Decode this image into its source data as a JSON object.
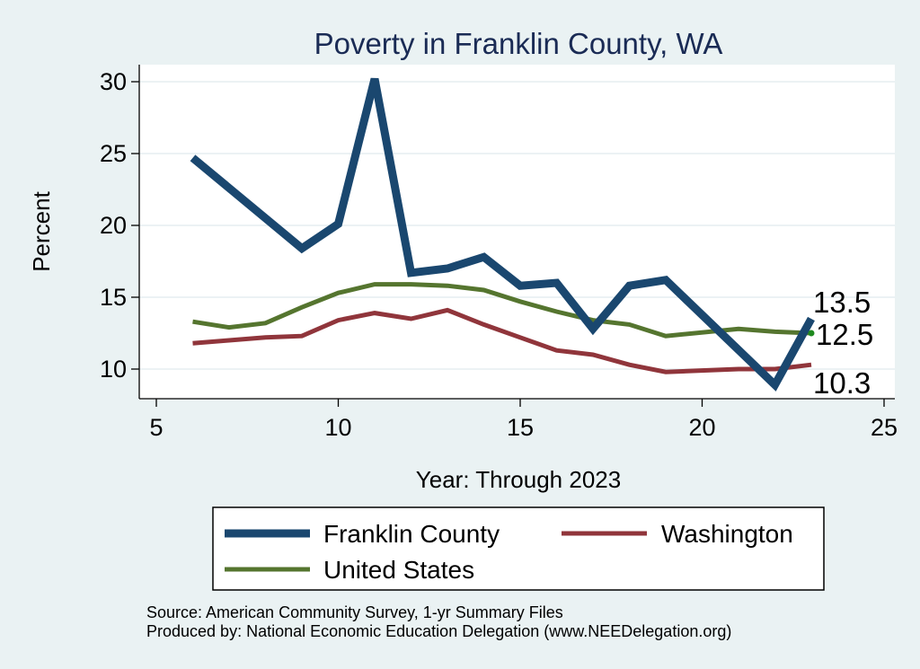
{
  "chart_data": {
    "type": "line",
    "title": "Poverty in Franklin County, WA",
    "xlabel": "Year: Through 2023",
    "ylabel": "Percent",
    "xlim": [
      5,
      25
    ],
    "ylim": [
      8,
      31
    ],
    "xticks": [
      5,
      10,
      15,
      20,
      25
    ],
    "yticks": [
      10,
      15,
      20,
      25,
      30
    ],
    "grid": "horizontal",
    "legend_position": "bottom",
    "series": [
      {
        "name": "Franklin County",
        "color": "#1a476f",
        "x": [
          6,
          9,
          10,
          11,
          12,
          13,
          14,
          15,
          16,
          17,
          18,
          19,
          22,
          23
        ],
        "y": [
          24.7,
          18.4,
          20.1,
          30.2,
          16.7,
          17.0,
          17.8,
          15.8,
          16.0,
          12.8,
          15.8,
          16.2,
          8.9,
          13.5
        ],
        "end_label": "13.5"
      },
      {
        "name": "Washington",
        "color": "#90353b",
        "x": [
          6,
          7,
          8,
          9,
          10,
          11,
          12,
          13,
          14,
          15,
          16,
          17,
          18,
          19,
          21,
          22,
          23
        ],
        "y": [
          11.8,
          12.0,
          12.2,
          12.3,
          13.4,
          13.9,
          13.5,
          14.1,
          13.1,
          12.2,
          11.3,
          11.0,
          10.3,
          9.8,
          10.0,
          10.0,
          10.3
        ],
        "end_label": "10.3"
      },
      {
        "name": "United States",
        "color": "#55752f",
        "x": [
          6,
          7,
          8,
          9,
          10,
          11,
          12,
          13,
          14,
          15,
          16,
          17,
          18,
          19,
          21,
          22,
          23
        ],
        "y": [
          13.3,
          12.9,
          13.2,
          14.3,
          15.3,
          15.9,
          15.9,
          15.8,
          15.5,
          14.7,
          14.0,
          13.4,
          13.1,
          12.3,
          12.8,
          12.6,
          12.5
        ],
        "end_label": "12.5"
      }
    ],
    "legend": [
      {
        "series": "Franklin County"
      },
      {
        "series": "Washington"
      },
      {
        "series": "United States"
      }
    ]
  },
  "footer": {
    "source": "Source: American Community Survey, 1-yr Summary Files",
    "produced_by": "Produced by: National Economic Education Delegation (www.NEEDelegation.org)"
  }
}
